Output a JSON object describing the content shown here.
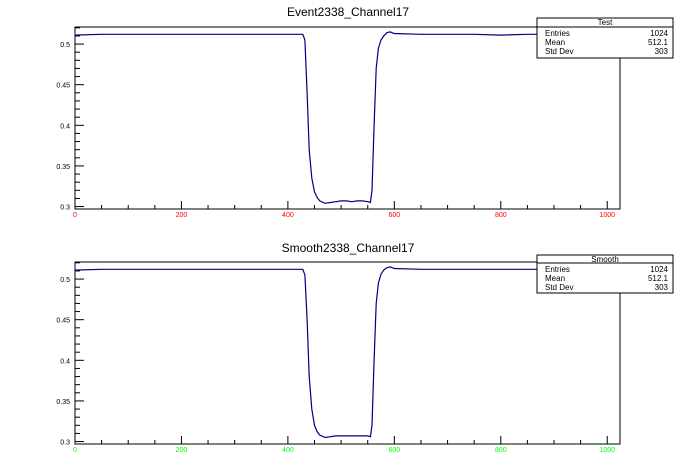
{
  "colors": {
    "background": "#ffffff",
    "frame": "#000000",
    "trace": "#000080",
    "x_labels_top": "#ff0000",
    "x_labels_bottom": "#00ff00"
  },
  "chart_data": [
    {
      "type": "line",
      "title": "Event2338_Channel17",
      "xlim": [
        0,
        1024
      ],
      "ylim": [
        0.297,
        0.521
      ],
      "x_ticks": [
        0,
        200,
        400,
        600,
        800,
        1000
      ],
      "x_tick_labels": [
        "0",
        "200",
        "400",
        "600",
        "800",
        "1000"
      ],
      "y_ticks": [
        0.3,
        0.35,
        0.4,
        0.45,
        0.5
      ],
      "y_tick_labels": [
        "0.3",
        "0.35",
        "0.4",
        "0.45",
        "0.5"
      ],
      "grid": false,
      "legend": "none",
      "stats": {
        "name": "Test",
        "rows": [
          {
            "label": "Entries",
            "value": "1024"
          },
          {
            "label": "Mean",
            "value": "512.1"
          },
          {
            "label": "Std Dev",
            "value": "303"
          }
        ]
      },
      "series": [
        {
          "x": [
            0,
            50,
            100,
            150,
            200,
            250,
            300,
            350,
            400,
            420,
            428,
            432,
            436,
            440,
            445,
            450,
            455,
            460,
            470,
            480,
            490,
            500,
            510,
            520,
            530,
            540,
            550,
            555,
            558,
            562,
            566,
            570,
            575,
            580,
            586,
            592,
            600,
            650,
            700,
            750,
            800,
            850,
            900,
            950,
            1000,
            1024
          ],
          "y": [
            0.511,
            0.512,
            0.512,
            0.512,
            0.512,
            0.512,
            0.512,
            0.512,
            0.512,
            0.512,
            0.512,
            0.505,
            0.44,
            0.37,
            0.335,
            0.318,
            0.311,
            0.307,
            0.304,
            0.305,
            0.306,
            0.307,
            0.307,
            0.306,
            0.307,
            0.307,
            0.306,
            0.305,
            0.32,
            0.4,
            0.47,
            0.495,
            0.505,
            0.51,
            0.514,
            0.515,
            0.513,
            0.512,
            0.512,
            0.512,
            0.511,
            0.512,
            0.512,
            0.511,
            0.512,
            0.512
          ]
        }
      ]
    },
    {
      "type": "line",
      "title": "Smooth2338_Channel17",
      "xlim": [
        0,
        1024
      ],
      "ylim": [
        0.297,
        0.521
      ],
      "x_ticks": [
        0,
        200,
        400,
        600,
        800,
        1000
      ],
      "x_tick_labels": [
        "0",
        "200",
        "400",
        "600",
        "800",
        "1000"
      ],
      "y_ticks": [
        0.3,
        0.35,
        0.4,
        0.45,
        0.5
      ],
      "y_tick_labels": [
        "0.3",
        "0.35",
        "0.4",
        "0.45",
        "0.5"
      ],
      "grid": false,
      "legend": "none",
      "stats": {
        "name": "Smooth",
        "rows": [
          {
            "label": "Entries",
            "value": "1024"
          },
          {
            "label": "Mean",
            "value": "512.1"
          },
          {
            "label": "Std Dev",
            "value": "303"
          }
        ]
      },
      "series": [
        {
          "x": [
            0,
            50,
            100,
            150,
            200,
            250,
            300,
            350,
            400,
            420,
            428,
            432,
            436,
            440,
            445,
            450,
            455,
            460,
            470,
            480,
            490,
            500,
            510,
            520,
            530,
            540,
            550,
            555,
            558,
            562,
            566,
            570,
            575,
            580,
            586,
            592,
            600,
            650,
            700,
            750,
            800,
            850,
            900,
            950,
            1000,
            1024
          ],
          "y": [
            0.511,
            0.512,
            0.512,
            0.512,
            0.512,
            0.512,
            0.512,
            0.512,
            0.512,
            0.512,
            0.512,
            0.505,
            0.45,
            0.38,
            0.34,
            0.32,
            0.312,
            0.308,
            0.305,
            0.306,
            0.307,
            0.307,
            0.307,
            0.307,
            0.307,
            0.307,
            0.307,
            0.306,
            0.32,
            0.4,
            0.47,
            0.495,
            0.506,
            0.511,
            0.514,
            0.515,
            0.513,
            0.512,
            0.512,
            0.512,
            0.512,
            0.512,
            0.512,
            0.512,
            0.512,
            0.512
          ]
        }
      ]
    }
  ]
}
